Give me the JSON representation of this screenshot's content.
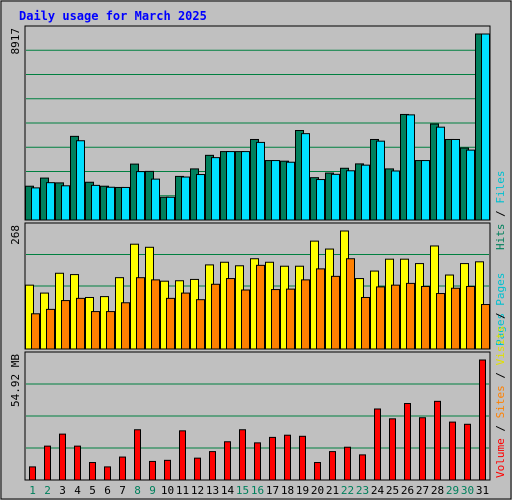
{
  "chart_data": {
    "type": "bar",
    "title": "Daily usage for March 2025",
    "categories": [
      "1",
      "2",
      "3",
      "4",
      "5",
      "6",
      "7",
      "8",
      "9",
      "10",
      "11",
      "12",
      "13",
      "14",
      "15",
      "16",
      "17",
      "18",
      "19",
      "20",
      "21",
      "22",
      "23",
      "24",
      "25",
      "26",
      "27",
      "28",
      "29",
      "30",
      "31"
    ],
    "weekend_days": [
      "1",
      "2",
      "8",
      "9",
      "15",
      "16",
      "22",
      "23",
      "29",
      "30"
    ],
    "panels": [
      {
        "name": "hits-files",
        "max_label": "8917",
        "ymax": 8917,
        "series": [
          {
            "name": "Hits",
            "color": "#00805c",
            "values": [
              1620,
              2010,
              1780,
              4010,
              1810,
              1620,
              1560,
              2680,
              2330,
              1090,
              2090,
              2450,
              3100,
              3280,
              3280,
              3860,
              2850,
              2820,
              4290,
              2030,
              2250,
              2480,
              2690,
              3860,
              2450,
              5060,
              2850,
              4600,
              3860,
              3450,
              8917
            ]
          },
          {
            "name": "Files",
            "color": "#00e0ff",
            "values": [
              1540,
              1790,
              1640,
              3800,
              1660,
              1570,
              1560,
              2320,
              1960,
              1090,
              2060,
              2180,
              2990,
              3280,
              3280,
              3720,
              2850,
              2770,
              4140,
              1940,
              2190,
              2360,
              2630,
              3780,
              2350,
              5040,
              2850,
              4450,
              3860,
              3350,
              8917
            ]
          }
        ]
      },
      {
        "name": "pages-visits",
        "max_label": "268",
        "ymax": 268,
        "series": [
          {
            "name": "Pages",
            "color": "#ffff00",
            "values": [
              145,
              127,
              172,
              169,
              117,
              119,
              162,
              238,
              231,
              154,
              155,
              158,
              191,
              197,
              189,
              205,
              197,
              188,
              188,
              245,
              227,
              268,
              160,
              177,
              204,
              204,
              194,
              234,
              168,
              194,
              198
            ]
          },
          {
            "name": "Visits",
            "color": "#ff8000",
            "values": [
              80,
              90,
              110,
              115,
              85,
              85,
              105,
              162,
              157,
              115,
              127,
              112,
              147,
              160,
              134,
              190,
              135,
              136,
              157,
              182,
              165,
              205,
              117,
              141,
              145,
              149,
              142,
              126,
              138,
              142,
              101
            ]
          }
        ]
      },
      {
        "name": "volume",
        "max_label": "54.92 MB",
        "ymax": 54.92,
        "series": [
          {
            "name": "Volume",
            "color": "#ff0000",
            "values": [
              6,
              15.5,
              21,
              15.5,
              8,
              6,
              10.5,
              23,
              8.5,
              9,
              22.5,
              10,
              13,
              17.5,
              23,
              17,
              19.5,
              20.5,
              20,
              8,
              13,
              15,
              11.5,
              32.5,
              28,
              35,
              28.5,
              36,
              26.5,
              25.5,
              54.92
            ]
          }
        ]
      }
    ],
    "right_legends": [
      {
        "panel": "hits-files",
        "items": [
          {
            "text": "Hits",
            "color": "#00805c"
          },
          {
            "text": "Files",
            "color": "#00c0d0"
          }
        ]
      },
      {
        "panel": "pages-visits",
        "items": [
          {
            "text": "Pages",
            "color": "#00c0d0"
          }
        ]
      },
      {
        "panel": "volume",
        "items": [
          {
            "text": "Volume",
            "color": "#ff0000"
          },
          {
            "text": "Sites",
            "color": "#ff8000"
          },
          {
            "text": "Visits",
            "color": "#e0e000"
          },
          {
            "text": "Pages",
            "color": "#00c0d0"
          }
        ]
      }
    ],
    "legend_separator": " / ",
    "colors": {
      "background": "#c0c0c0",
      "title": "#0000ff",
      "grid": "#008040",
      "axis_text": "#000000",
      "weekday_label": "#000000",
      "weekend_label": "#00805c"
    }
  }
}
